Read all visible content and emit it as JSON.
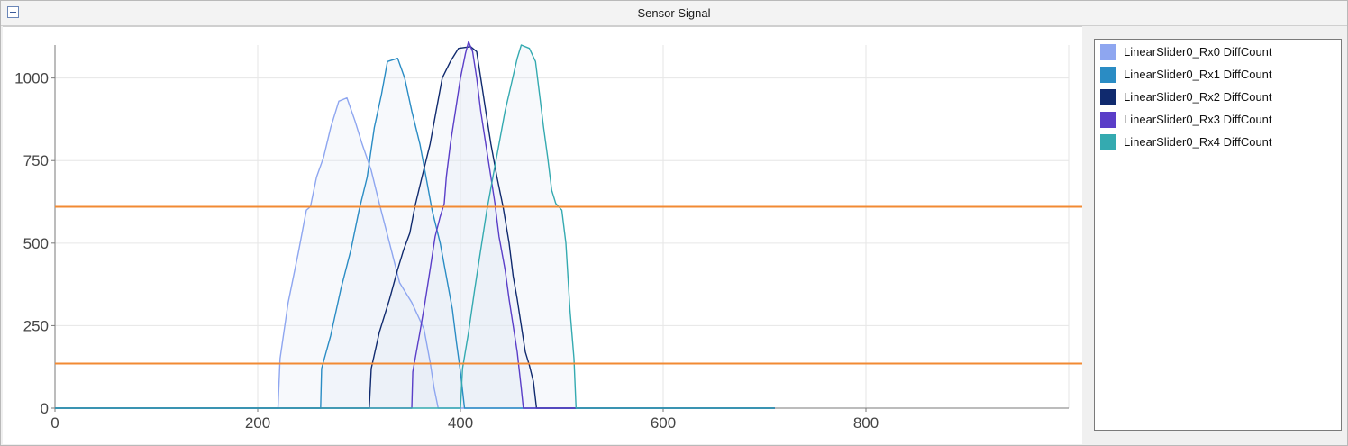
{
  "window": {
    "title": "Sensor Signal",
    "collapse_icon": "minus-box-icon"
  },
  "colors": {
    "threshold": "#f28a33",
    "grid": "#e6e6e6",
    "axis": "#7a7a7a",
    "tick_text": "#444444"
  },
  "chart_data": {
    "type": "area",
    "title": "Sensor Signal",
    "xlabel": "",
    "ylabel": "",
    "xlim": [
      0,
      1000
    ],
    "ylim": [
      0,
      1100
    ],
    "xticks": [
      0,
      200,
      400,
      600,
      800
    ],
    "yticks": [
      0,
      250,
      500,
      750,
      1000
    ],
    "grid": true,
    "legend_position": "right",
    "thresholds": [
      610,
      135
    ],
    "series": [
      {
        "name": "LinearSlider0_Rx0 DiffCount",
        "color": "#8ea6f0",
        "points": [
          [
            0,
            0
          ],
          [
            220,
            0
          ],
          [
            222,
            150
          ],
          [
            230,
            320
          ],
          [
            240,
            470
          ],
          [
            248,
            600
          ],
          [
            252,
            610
          ],
          [
            258,
            700
          ],
          [
            265,
            760
          ],
          [
            272,
            850
          ],
          [
            280,
            930
          ],
          [
            288,
            940
          ],
          [
            296,
            870
          ],
          [
            303,
            800
          ],
          [
            312,
            720
          ],
          [
            320,
            620
          ],
          [
            330,
            500
          ],
          [
            340,
            380
          ],
          [
            346,
            350
          ],
          [
            352,
            320
          ],
          [
            358,
            280
          ],
          [
            364,
            240
          ],
          [
            370,
            140
          ],
          [
            374,
            60
          ],
          [
            378,
            0
          ],
          [
            710,
            0
          ]
        ]
      },
      {
        "name": "LinearSlider0_Rx1 DiffCount",
        "color": "#2a8cc4",
        "points": [
          [
            0,
            0
          ],
          [
            262,
            0
          ],
          [
            263,
            120
          ],
          [
            272,
            220
          ],
          [
            282,
            360
          ],
          [
            292,
            480
          ],
          [
            300,
            600
          ],
          [
            308,
            700
          ],
          [
            315,
            850
          ],
          [
            322,
            950
          ],
          [
            328,
            1050
          ],
          [
            338,
            1060
          ],
          [
            345,
            1000
          ],
          [
            352,
            900
          ],
          [
            360,
            800
          ],
          [
            366,
            700
          ],
          [
            372,
            600
          ],
          [
            380,
            500
          ],
          [
            386,
            400
          ],
          [
            392,
            300
          ],
          [
            396,
            200
          ],
          [
            400,
            110
          ],
          [
            404,
            0
          ],
          [
            710,
            0
          ]
        ]
      },
      {
        "name": "LinearSlider0_Rx2 DiffCount",
        "color": "#102a6e",
        "points": [
          [
            0,
            0
          ],
          [
            310,
            0
          ],
          [
            312,
            120
          ],
          [
            320,
            230
          ],
          [
            330,
            330
          ],
          [
            338,
            420
          ],
          [
            344,
            480
          ],
          [
            350,
            530
          ],
          [
            355,
            610
          ],
          [
            362,
            700
          ],
          [
            370,
            800
          ],
          [
            376,
            900
          ],
          [
            382,
            1000
          ],
          [
            390,
            1050
          ],
          [
            398,
            1090
          ],
          [
            410,
            1095
          ],
          [
            416,
            1080
          ],
          [
            420,
            1000
          ],
          [
            425,
            900
          ],
          [
            430,
            800
          ],
          [
            436,
            700
          ],
          [
            442,
            610
          ],
          [
            448,
            500
          ],
          [
            452,
            400
          ],
          [
            456,
            330
          ],
          [
            460,
            250
          ],
          [
            464,
            170
          ],
          [
            468,
            130
          ],
          [
            472,
            80
          ],
          [
            475,
            0
          ],
          [
            710,
            0
          ]
        ]
      },
      {
        "name": "LinearSlider0_Rx3 DiffCount",
        "color": "#5a3ec8",
        "points": [
          [
            0,
            0
          ],
          [
            352,
            0
          ],
          [
            353,
            110
          ],
          [
            360,
            230
          ],
          [
            365,
            320
          ],
          [
            370,
            420
          ],
          [
            375,
            520
          ],
          [
            380,
            580
          ],
          [
            384,
            620
          ],
          [
            386,
            700
          ],
          [
            390,
            800
          ],
          [
            395,
            900
          ],
          [
            400,
            1000
          ],
          [
            405,
            1075
          ],
          [
            408,
            1110
          ],
          [
            412,
            1080
          ],
          [
            416,
            1000
          ],
          [
            420,
            900
          ],
          [
            425,
            800
          ],
          [
            430,
            700
          ],
          [
            434,
            620
          ],
          [
            438,
            520
          ],
          [
            444,
            420
          ],
          [
            448,
            330
          ],
          [
            452,
            250
          ],
          [
            456,
            170
          ],
          [
            460,
            60
          ],
          [
            462,
            0
          ],
          [
            710,
            0
          ]
        ]
      },
      {
        "name": "LinearSlider0_Rx4 DiffCount",
        "color": "#34aab0",
        "points": [
          [
            0,
            0
          ],
          [
            400,
            0
          ],
          [
            402,
            120
          ],
          [
            408,
            230
          ],
          [
            414,
            360
          ],
          [
            420,
            480
          ],
          [
            426,
            600
          ],
          [
            432,
            700
          ],
          [
            438,
            800
          ],
          [
            444,
            900
          ],
          [
            450,
            980
          ],
          [
            456,
            1060
          ],
          [
            460,
            1100
          ],
          [
            468,
            1090
          ],
          [
            474,
            1050
          ],
          [
            478,
            950
          ],
          [
            482,
            850
          ],
          [
            486,
            760
          ],
          [
            490,
            660
          ],
          [
            494,
            620
          ],
          [
            500,
            600
          ],
          [
            504,
            500
          ],
          [
            508,
            300
          ],
          [
            512,
            150
          ],
          [
            514,
            0
          ],
          [
            710,
            0
          ]
        ]
      }
    ]
  }
}
